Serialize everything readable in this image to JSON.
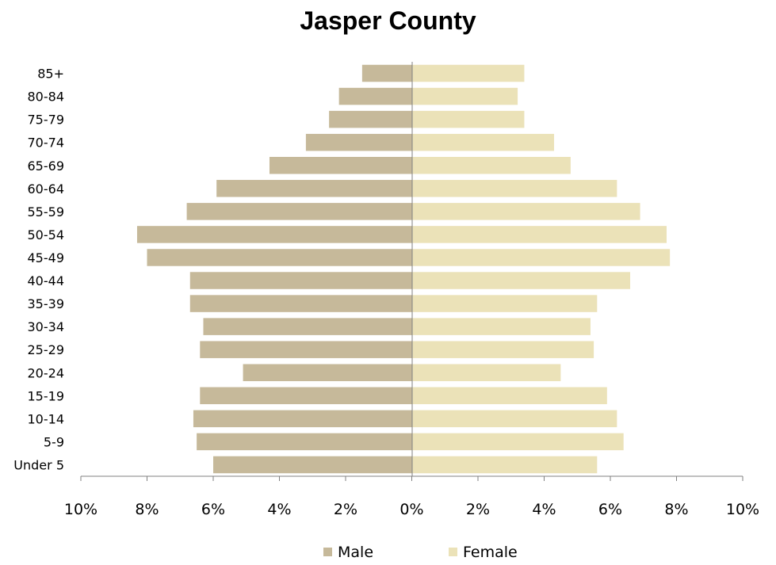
{
  "chart_data": {
    "type": "bar",
    "orientation": "horizontal",
    "title": "Jasper County",
    "categories": [
      "Under 5",
      "5-9",
      "10-14",
      "15-19",
      "20-24",
      "25-29",
      "30-34",
      "35-39",
      "40-44",
      "45-49",
      "50-54",
      "55-59",
      "60-64",
      "65-69",
      "70-74",
      "75-79",
      "80-84",
      "85+"
    ],
    "series": [
      {
        "name": "Male",
        "color": "#c6b99a",
        "values": [
          6.0,
          6.5,
          6.6,
          6.4,
          5.1,
          6.4,
          6.3,
          6.7,
          6.7,
          8.0,
          8.3,
          6.8,
          5.9,
          4.3,
          3.2,
          2.5,
          2.2,
          1.5
        ]
      },
      {
        "name": "Female",
        "color": "#ebe2b8",
        "values": [
          5.6,
          6.4,
          6.2,
          5.9,
          4.5,
          5.5,
          5.4,
          5.6,
          6.6,
          7.8,
          7.7,
          6.9,
          6.2,
          4.8,
          4.3,
          3.4,
          3.2,
          3.4
        ]
      }
    ],
    "xlim": [
      -10,
      10
    ],
    "xticks": [
      "10%",
      "8%",
      "6%",
      "4%",
      "2%",
      "0%",
      "2%",
      "4%",
      "6%",
      "8%",
      "10%"
    ],
    "legend_position": "bottom",
    "grid": false
  }
}
